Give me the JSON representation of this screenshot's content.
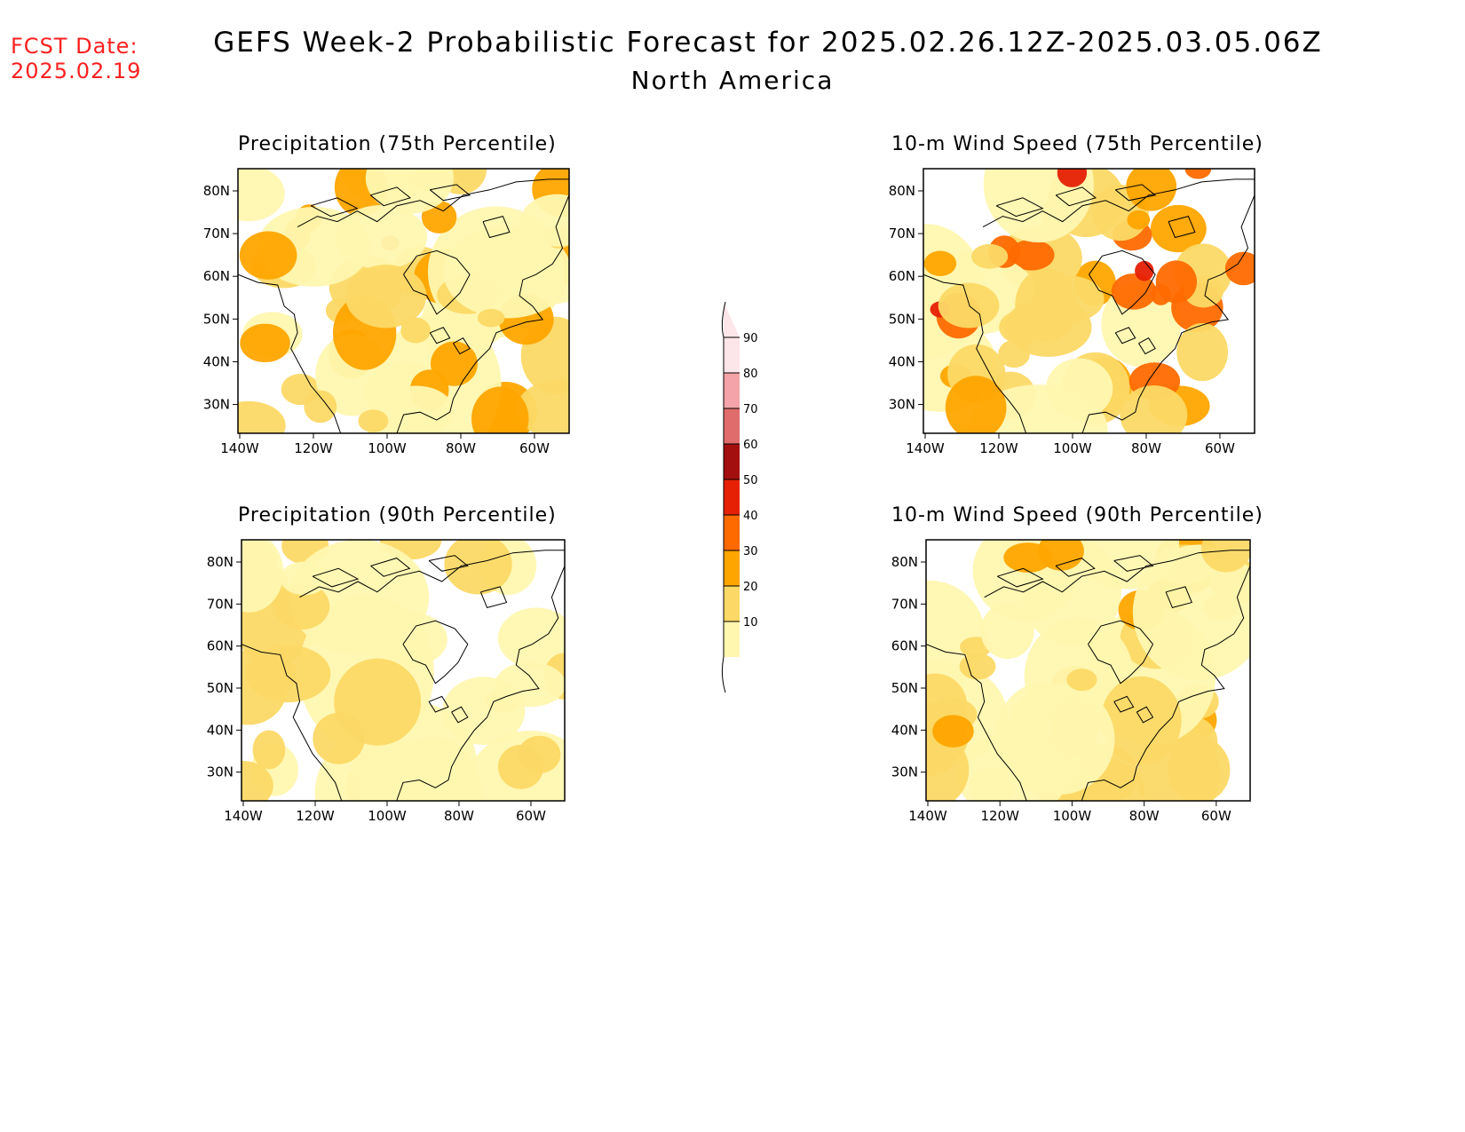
{
  "header": {
    "fcst_label": "FCST Date:",
    "fcst_date": "2025.02.19",
    "title": "GEFS Week-2 Probabilistic Forecast for 2025.02.26.12Z-2025.03.05.06Z",
    "region": "North America"
  },
  "panels": [
    {
      "title": "Precipitation (75th Percentile)",
      "intensity": 0.55
    },
    {
      "title": "10-m Wind Speed (75th Percentile)",
      "intensity": 0.85
    },
    {
      "title": "Precipitation (90th Percentile)",
      "intensity": 0.2
    },
    {
      "title": "10-m Wind Speed (90th Percentile)",
      "intensity": 0.3
    }
  ],
  "axes": {
    "lat_labels": [
      "80N",
      "70N",
      "60N",
      "50N",
      "40N",
      "30N"
    ],
    "lon_labels": [
      "140W",
      "120W",
      "100W",
      "80W",
      "60W"
    ]
  },
  "colorbar": {
    "labels": [
      "90",
      "80",
      "70",
      "60",
      "50",
      "40",
      "30",
      "20",
      "10"
    ],
    "colors": [
      "#fde6ea",
      "#f4a3a8",
      "#e06c6c",
      "#a30f0f",
      "#e62005",
      "#ff6a00",
      "#ffa500",
      "#fcd966",
      "#fff7b0"
    ]
  }
}
